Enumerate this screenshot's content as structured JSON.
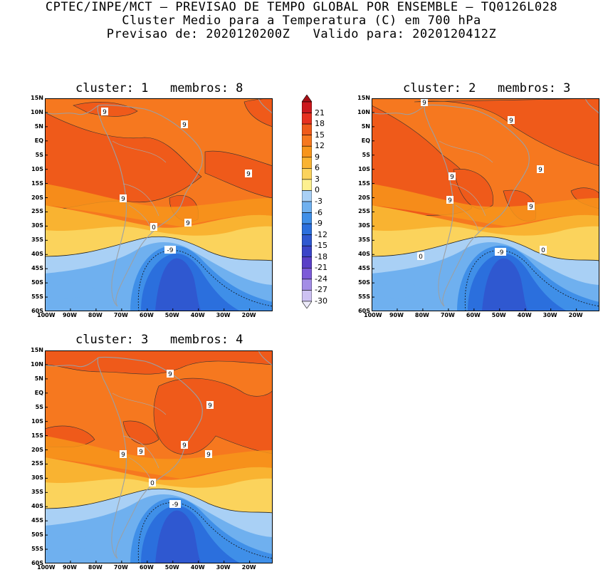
{
  "header": {
    "line1": "CPTEC/INPE/MCT — PREVISAO DE TEMPO GLOBAL POR ENSEMBLE — TQ0126L028",
    "line2": "Cluster Medio para a Temperatura (C) em 700 hPa",
    "line3": "Previsao de: 2020120200Z   Valido para: 2020120412Z"
  },
  "panels": [
    {
      "title": "cluster: 1   membros: 8",
      "contour_labels": [
        "9",
        "9",
        "9",
        "9",
        "9",
        "0",
        "-9"
      ]
    },
    {
      "title": "cluster: 2   membros: 3",
      "contour_labels": [
        "9",
        "9",
        "9",
        "9",
        "9",
        "9",
        "0",
        "0",
        "-9"
      ]
    },
    {
      "title": "cluster: 3   membros: 4",
      "contour_labels": [
        "9",
        "9",
        "9",
        "9",
        "9",
        "9",
        "0",
        "-9"
      ]
    }
  ],
  "lat_labels": [
    "15N",
    "10N",
    "5N",
    "EQ",
    "5S",
    "10S",
    "15S",
    "20S",
    "25S",
    "30S",
    "35S",
    "40S",
    "45S",
    "50S",
    "55S",
    "60S"
  ],
  "lon_labels": [
    "100W",
    "90W",
    "80W",
    "70W",
    "60W",
    "50W",
    "40W",
    "30W",
    "20W"
  ],
  "colorbar": {
    "levels": [
      "21",
      "18",
      "15",
      "12",
      "9",
      "6",
      "3",
      "0",
      "-3",
      "-6",
      "-9",
      "-12",
      "-15",
      "-18",
      "-21",
      "-24",
      "-27",
      "-30"
    ],
    "colors": [
      "#a50f15",
      "#cb181d",
      "#e7301f",
      "#ef5a1a",
      "#f6781f",
      "#f7951b",
      "#f9b331",
      "#fbd35c",
      "#fdf08f",
      "#a9d0f5",
      "#6fb0ef",
      "#3f8fe8",
      "#2b6fdd",
      "#2f58d0",
      "#3b44c8",
      "#5a3fc7",
      "#7c5ad8",
      "#a38de6",
      "#cdc1f2",
      "#eceaf9"
    ]
  }
}
